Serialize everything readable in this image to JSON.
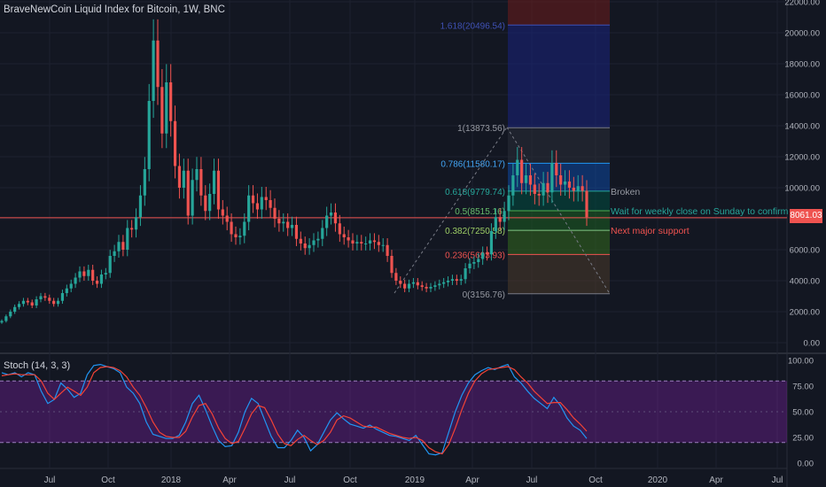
{
  "header": {
    "title": "BraveNewCoin Liquid Index for Bitcoin, 1W, BNC"
  },
  "current_price_badge": "8061.03",
  "stoch_label": "Stoch (14, 3, 3)",
  "colors": {
    "background": "#131722",
    "bull": "#26a69a",
    "bear": "#ef5350",
    "text": "#d1d4dc",
    "stoch_k": "#2196f3",
    "stoch_d": "#f44336",
    "stoch_band": "#7b1fa2"
  },
  "chart_data": [
    {
      "type": "candlestick",
      "title": "BraveNewCoin Liquid Index for Bitcoin, 1W, BNC",
      "y_axis": {
        "ylim": [
          -300,
          22200
        ],
        "ticks": [
          "0.00",
          "2000.00",
          "4000.00",
          "6000.00",
          "8000.00",
          "10000.00",
          "12000.00",
          "14000.00",
          "16000.00",
          "18000.00",
          "20000.00",
          "22000.00"
        ]
      },
      "x_axis": {
        "ticks": [
          "Jul",
          "Oct",
          "2018",
          "Apr",
          "Jul",
          "Oct",
          "2019",
          "Apr",
          "Jul",
          "Oct",
          "2020",
          "Apr",
          "Jul"
        ]
      },
      "grid": true,
      "horizontal_line": {
        "value": 8061.03
      },
      "fib_levels": [
        {
          "ratio": "1.618",
          "value": 20496.54,
          "label": "1.618(20496.54)"
        },
        {
          "ratio": "1",
          "value": 13873.56,
          "label": "1(13873.56)"
        },
        {
          "ratio": "0.786",
          "value": 11580.17,
          "label": "0.786(11580.17)"
        },
        {
          "ratio": "0.618",
          "value": 9779.74,
          "label": "0.618(9779.74)"
        },
        {
          "ratio": "0.5",
          "value": 8515.16,
          "label": "0.5(8515.16)"
        },
        {
          "ratio": "0.382",
          "value": 7250.58,
          "label": "0.382(7250.58)"
        },
        {
          "ratio": "0.236",
          "value": 5693.93,
          "label": "0.236(5693.93)"
        },
        {
          "ratio": "0",
          "value": 3156.76,
          "label": "0(3156.76)"
        }
      ],
      "annotations": [
        {
          "text": "Broken",
          "color": "#9598a1",
          "y_value": 9779.74
        },
        {
          "text": "Wait for weekly close on Sunday to confirm",
          "color": "#26a69a",
          "y_value": 8515.16
        },
        {
          "text": "Next major support",
          "color": "#ef5350",
          "y_value": 7250.58
        }
      ],
      "weekly_closes": [
        1400,
        1700,
        2000,
        2300,
        2500,
        2700,
        2600,
        2400,
        2800,
        3000,
        2900,
        2700,
        2500,
        2700,
        3200,
        3500,
        3800,
        4200,
        4600,
        4300,
        4700,
        4000,
        3800,
        4400,
        4500,
        5600,
        5900,
        6500,
        6000,
        7400,
        7300,
        8100,
        9500,
        11200,
        15600,
        19500,
        16500,
        13500,
        16800,
        14300,
        11400,
        10000,
        11100,
        8200,
        10500,
        11200,
        9500,
        8500,
        9600,
        11100,
        8600,
        8200,
        7800,
        7000,
        6800,
        6900,
        7800,
        9500,
        9000,
        8600,
        9400,
        9200,
        8700,
        8000,
        7700,
        7800,
        7400,
        7600,
        6700,
        6400,
        6100,
        6300,
        6600,
        6700,
        7400,
        8200,
        8400,
        7700,
        7000,
        6800,
        6600,
        6400,
        6500,
        6400,
        6400,
        6600,
        6500,
        6300,
        6300,
        5600,
        4500,
        4000,
        3800,
        3500,
        3800,
        3900,
        3700,
        3600,
        3500,
        3600,
        3700,
        3800,
        3900,
        4000,
        4100,
        4000,
        4100,
        4800,
        5100,
        5200,
        5400,
        5800,
        5700,
        7200,
        8100,
        7800,
        8500,
        9500,
        10800,
        11800,
        10300,
        10800,
        10200,
        9600,
        9500,
        10300,
        9700,
        11600,
        10800,
        10200,
        10400,
        10000,
        9800,
        10100,
        9800,
        8100
      ]
    },
    {
      "type": "line",
      "title": "Stoch (14, 3, 3)",
      "ylim": [
        0,
        100
      ],
      "y_ticks": [
        "0.00",
        "25.00",
        "50.00",
        "75.00",
        "100.00"
      ],
      "band": [
        20,
        80
      ],
      "series": [
        {
          "name": "%K",
          "values": [
            88,
            86,
            88,
            84,
            88,
            86,
            70,
            58,
            62,
            78,
            72,
            64,
            68,
            86,
            95,
            96,
            94,
            92,
            88,
            74,
            68,
            58,
            40,
            28,
            26,
            24,
            24,
            27,
            40,
            58,
            66,
            52,
            36,
            22,
            16,
            17,
            30,
            50,
            63,
            58,
            42,
            26,
            15,
            15,
            22,
            32,
            25,
            12,
            18,
            30,
            42,
            49,
            43,
            38,
            36,
            34,
            37,
            33,
            30,
            27,
            26,
            24,
            22,
            27,
            18,
            9,
            8,
            10,
            30,
            50,
            66,
            78,
            86,
            90,
            93,
            91,
            94,
            96,
            84,
            78,
            70,
            63,
            58,
            53,
            64,
            56,
            44,
            36,
            32,
            24
          ]
        },
        {
          "name": "%D",
          "values": [
            85,
            86,
            87,
            86,
            86,
            86,
            80,
            68,
            62,
            68,
            74,
            70,
            66,
            74,
            88,
            93,
            94,
            93,
            90,
            84,
            74,
            66,
            54,
            40,
            30,
            26,
            25,
            25,
            31,
            45,
            56,
            58,
            48,
            34,
            24,
            19,
            21,
            34,
            48,
            56,
            54,
            42,
            28,
            19,
            17,
            23,
            27,
            22,
            18,
            22,
            30,
            42,
            46,
            44,
            40,
            36,
            35,
            35,
            32,
            29,
            27,
            25,
            24,
            25,
            22,
            15,
            11,
            9,
            18,
            34,
            52,
            68,
            80,
            87,
            91,
            92,
            93,
            94,
            91,
            84,
            78,
            70,
            64,
            58,
            59,
            59,
            52,
            44,
            38,
            31
          ]
        }
      ]
    }
  ]
}
